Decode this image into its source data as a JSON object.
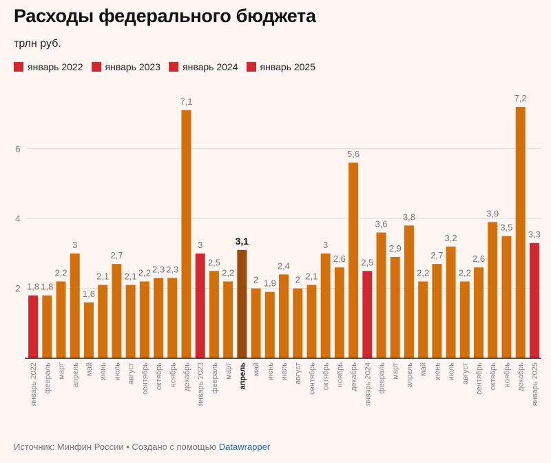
{
  "header": {
    "title": "Расходы федерального бюджета",
    "subtitle": "трлн руб."
  },
  "legend": [
    {
      "label": "январь 2022",
      "color": "#d0282e"
    },
    {
      "label": "январь 2023",
      "color": "#d0282e"
    },
    {
      "label": "январь 2024",
      "color": "#d0282e"
    },
    {
      "label": "январь 2025",
      "color": "#d0282e"
    }
  ],
  "colors": {
    "bar": "#d4700b",
    "january": "#d0282e",
    "highlight": "#9a4a0a",
    "grid": "#e4dcd8",
    "axis": "#222222",
    "tick_label": "#888888",
    "value_label": "#777777"
  },
  "chart_data": {
    "type": "bar",
    "title": "Расходы федерального бюджета",
    "ylabel": "трлн руб.",
    "ylim": [
      0,
      7.6
    ],
    "yticks": [
      2,
      4,
      6
    ],
    "grid": true,
    "highlighted_category_index": 15,
    "categories": [
      "январь 2022",
      "февраль",
      "март",
      "апрель",
      "май",
      "июнь",
      "июль",
      "август",
      "сентябрь",
      "октябрь",
      "ноябрь",
      "декабрь",
      "январь 2023",
      "февраль",
      "март",
      "апрель",
      "май",
      "июнь",
      "июль",
      "август",
      "сентябрь",
      "октябрь",
      "ноябрь",
      "декабрь",
      "январь 2024",
      "февраль",
      "март",
      "апрель",
      "май",
      "июнь",
      "июль",
      "август",
      "сентябрь",
      "октябрь",
      "ноябрь",
      "декабрь",
      "январь 2025"
    ],
    "values": [
      1.8,
      1.8,
      2.2,
      3.0,
      1.6,
      2.1,
      2.7,
      2.1,
      2.2,
      2.3,
      2.3,
      7.1,
      3.0,
      2.5,
      2.2,
      3.1,
      2.0,
      1.9,
      2.4,
      2.0,
      2.1,
      3.0,
      2.6,
      5.6,
      2.5,
      3.6,
      2.9,
      3.8,
      2.2,
      2.7,
      3.2,
      2.2,
      2.6,
      3.9,
      3.5,
      7.2,
      3.3
    ],
    "value_labels": [
      "1,8",
      "1,8",
      "2,2",
      "3",
      "1,6",
      "2,1",
      "2,7",
      "2,1",
      "2,2",
      "2,3",
      "2,3",
      "7,1",
      "3",
      "2,5",
      "2,2",
      "3,1",
      "2",
      "1,9",
      "2,4",
      "2",
      "2,1",
      "3",
      "2,6",
      "5,6",
      "2,5",
      "3,6",
      "2,9",
      "3,8",
      "2,2",
      "2,7",
      "3,2",
      "2,2",
      "2,6",
      "3,9",
      "3,5",
      "7,2",
      "3,3"
    ]
  },
  "footer": {
    "source": "Источник: Минфин России • Создано с помощью ",
    "link": "Datawrapper"
  }
}
